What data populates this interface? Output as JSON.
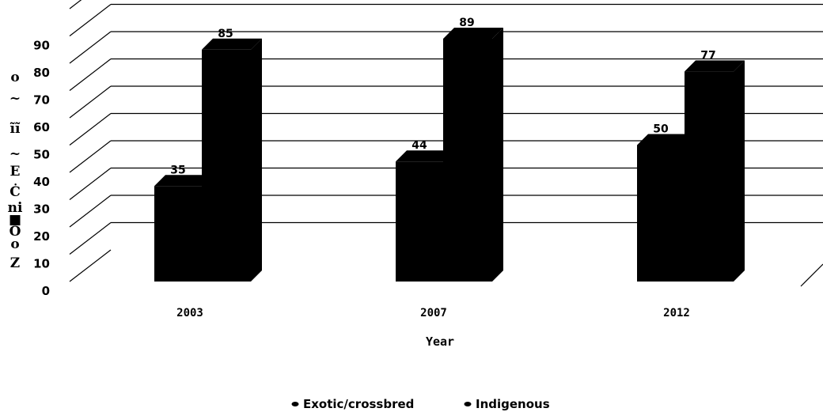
{
  "chart_data": {
    "type": "bar",
    "categories": [
      "2003",
      "2007",
      "2012"
    ],
    "series": [
      {
        "name": "Exotic/crossbred",
        "values": [
          35,
          44,
          50
        ]
      },
      {
        "name": "Indigenous",
        "values": [
          85,
          89,
          77
        ]
      }
    ],
    "xlabel": "Year",
    "ylabel": "o ~ ĩĩ ~ E Ċ ni ■ O o Z",
    "ylim": [
      0,
      90
    ],
    "yticks": [
      0,
      10,
      20,
      30,
      40,
      50,
      60,
      70,
      80,
      90
    ],
    "grid": true,
    "legend_position": "bottom",
    "colors": {
      "bars": "#000000",
      "grid": "#000000",
      "background": "#ffffff"
    }
  }
}
